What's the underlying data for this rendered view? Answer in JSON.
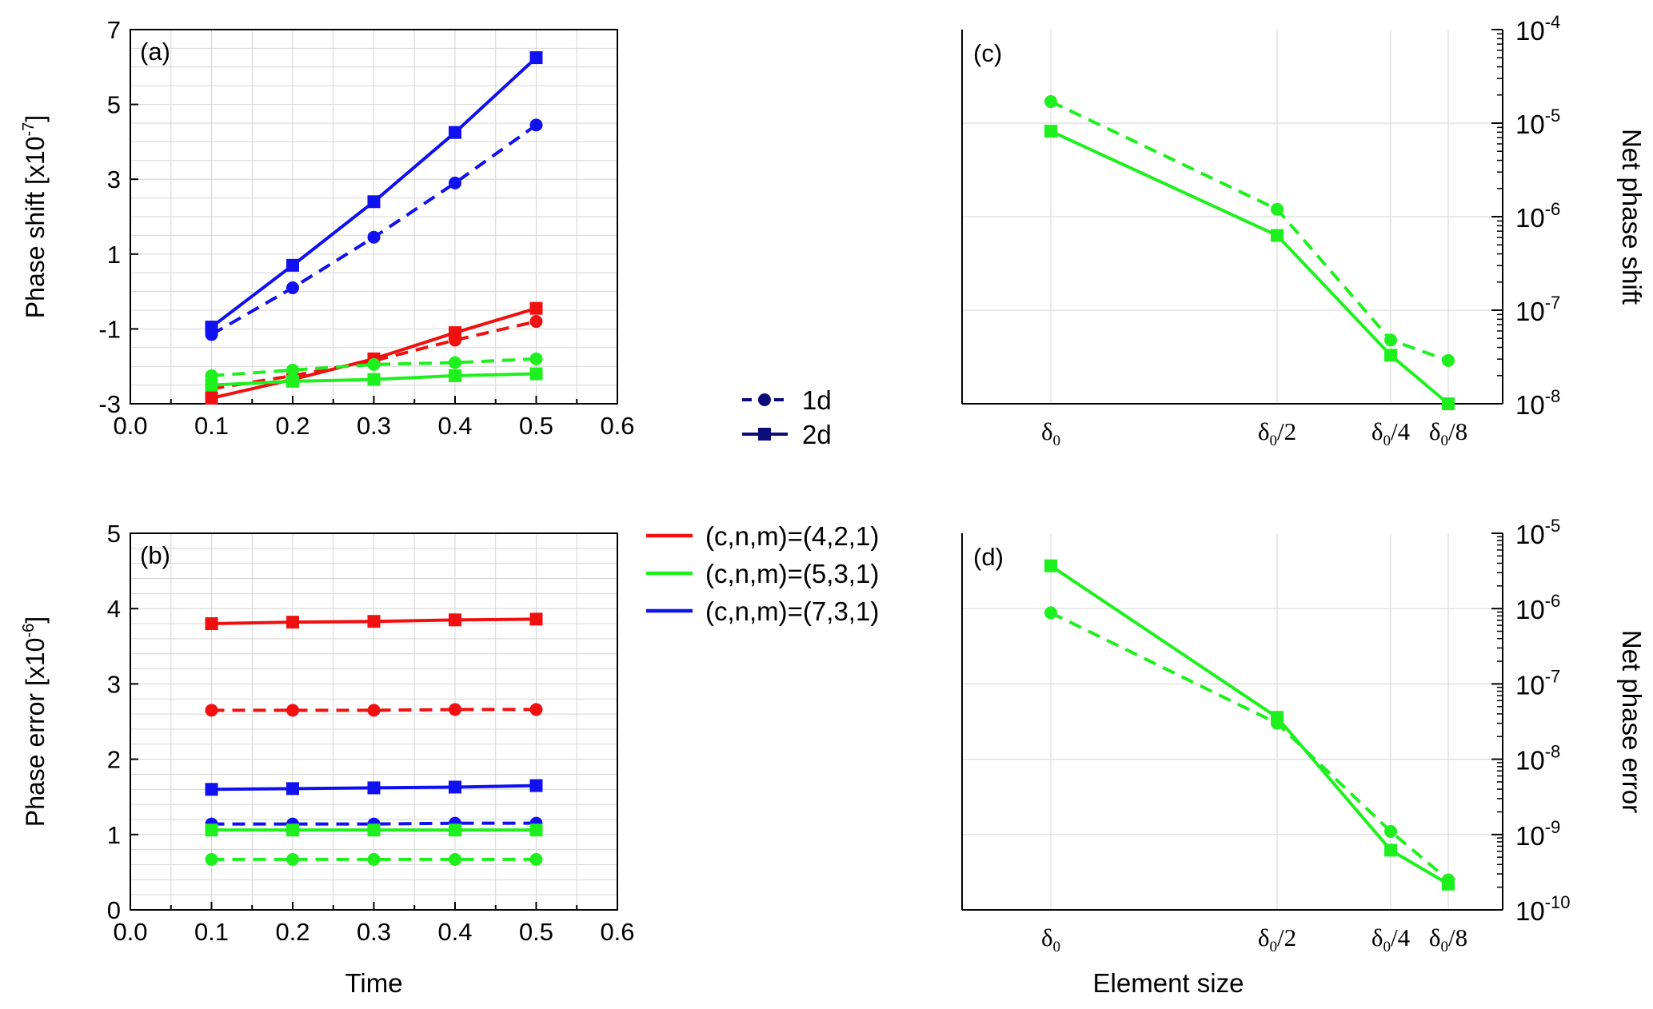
{
  "legend_style": {
    "entries": [
      {
        "label": "1d",
        "dash": true,
        "marker": "circle"
      },
      {
        "label": "2d",
        "dash": false,
        "marker": "square"
      }
    ],
    "color": "#0b0b7a"
  },
  "legend_series": {
    "entries": [
      {
        "label": "(c,n,m)=(4,2,1)",
        "color": "#f01010"
      },
      {
        "label": "(c,n,m)=(5,3,1)",
        "color": "#1ef01e"
      },
      {
        "label": "(c,n,m)=(7,3,1)",
        "color": "#1010f0"
      }
    ]
  },
  "chart_data": [
    {
      "panel": "(a)",
      "type": "line",
      "ylabel": "Phase shift [x10",
      "ylabel_exp": "-7",
      "ylabel_suffix": "]",
      "xlabel": "",
      "xlim": [
        0.0,
        0.6
      ],
      "ylim": [
        -3,
        7
      ],
      "xticks": [
        0.0,
        0.1,
        0.2,
        0.3,
        0.4,
        0.5,
        0.6
      ],
      "xtick_labels": [
        "0.0",
        "0.1",
        "0.2",
        "0.3",
        "0.4",
        "0.5",
        "0.6"
      ],
      "yticks": [
        -3,
        -1,
        1,
        3,
        5,
        7
      ],
      "ytick_labels": [
        "-3",
        "-1",
        "1",
        "3",
        "5",
        "7"
      ],
      "x": [
        0.1,
        0.2,
        0.3,
        0.4,
        0.5
      ],
      "series": [
        {
          "name": "(7,3,1) 2d",
          "color": "#1010f0",
          "dash": false,
          "marker": "square",
          "values": [
            -0.95,
            0.7,
            2.4,
            4.25,
            6.25
          ]
        },
        {
          "name": "(7,3,1) 1d",
          "color": "#1010f0",
          "dash": true,
          "marker": "circle",
          "values": [
            -1.15,
            0.1,
            1.45,
            2.9,
            4.45
          ]
        },
        {
          "name": "(4,2,1) 2d",
          "color": "#f01010",
          "dash": false,
          "marker": "square",
          "values": [
            -2.85,
            -2.35,
            -1.8,
            -1.1,
            -0.45
          ]
        },
        {
          "name": "(4,2,1) 1d",
          "color": "#f01010",
          "dash": true,
          "marker": "circle",
          "values": [
            -2.6,
            -2.25,
            -1.85,
            -1.3,
            -0.8
          ]
        },
        {
          "name": "(5,3,1) 2d",
          "color": "#1ef01e",
          "dash": false,
          "marker": "square",
          "values": [
            -2.5,
            -2.4,
            -2.35,
            -2.25,
            -2.2
          ]
        },
        {
          "name": "(5,3,1) 1d",
          "color": "#1ef01e",
          "dash": true,
          "marker": "circle",
          "values": [
            -2.25,
            -2.1,
            -1.95,
            -1.9,
            -1.8
          ]
        }
      ]
    },
    {
      "panel": "(b)",
      "type": "line",
      "ylabel": "Phase error [x10",
      "ylabel_exp": "-6",
      "ylabel_suffix": "]",
      "xlabel": "Time",
      "xlim": [
        0.0,
        0.6
      ],
      "ylim": [
        0,
        5
      ],
      "xticks": [
        0.0,
        0.1,
        0.2,
        0.3,
        0.4,
        0.5,
        0.6
      ],
      "xtick_labels": [
        "0.0",
        "0.1",
        "0.2",
        "0.3",
        "0.4",
        "0.5",
        "0.6"
      ],
      "yticks": [
        0,
        1,
        2,
        3,
        4,
        5
      ],
      "ytick_labels": [
        "0",
        "1",
        "2",
        "3",
        "4",
        "5"
      ],
      "x": [
        0.1,
        0.2,
        0.3,
        0.4,
        0.5
      ],
      "series": [
        {
          "name": "(4,2,1) 2d",
          "color": "#f01010",
          "dash": false,
          "marker": "square",
          "values": [
            3.8,
            3.82,
            3.83,
            3.85,
            3.86
          ]
        },
        {
          "name": "(4,2,1) 1d",
          "color": "#f01010",
          "dash": true,
          "marker": "circle",
          "values": [
            2.65,
            2.65,
            2.65,
            2.66,
            2.66
          ]
        },
        {
          "name": "(7,3,1) 2d",
          "color": "#1010f0",
          "dash": false,
          "marker": "square",
          "values": [
            1.6,
            1.61,
            1.62,
            1.63,
            1.65
          ]
        },
        {
          "name": "(7,3,1) 1d",
          "color": "#1010f0",
          "dash": true,
          "marker": "circle",
          "values": [
            1.14,
            1.14,
            1.14,
            1.15,
            1.15
          ]
        },
        {
          "name": "(5,3,1) 2d",
          "color": "#1ef01e",
          "dash": false,
          "marker": "square",
          "values": [
            1.06,
            1.06,
            1.06,
            1.06,
            1.06
          ]
        },
        {
          "name": "(5,3,1) 1d",
          "color": "#1ef01e",
          "dash": true,
          "marker": "circle",
          "values": [
            0.67,
            0.67,
            0.67,
            0.67,
            0.67
          ]
        }
      ]
    },
    {
      "panel": "(c)",
      "type": "line",
      "yscale": "log",
      "ylabel": "Net phase shift",
      "xlabel": "",
      "x": [
        1,
        0.5,
        0.25,
        0.125
      ],
      "xtick_labels": [
        {
          "base": "δ",
          "sub": "0",
          "tail": ""
        },
        {
          "base": "δ",
          "sub": "0",
          "tail": "/2"
        },
        {
          "base": "δ",
          "sub": "0",
          "tail": "/4"
        },
        {
          "base": "δ",
          "sub": "0",
          "tail": "/8"
        }
      ],
      "ylim_exp": [
        -8,
        -4
      ],
      "ytick_exps": [
        -8,
        -7,
        -6,
        -5,
        -4
      ],
      "ytick_base": "10",
      "series": [
        {
          "name": "2d",
          "color": "#1ef01e",
          "dash": false,
          "marker": "square",
          "values": [
            8.2e-06,
            6.3e-07,
            3.3e-08,
            1e-08
          ]
        },
        {
          "name": "1d",
          "color": "#1ef01e",
          "dash": true,
          "marker": "circle",
          "values": [
            1.7e-05,
            1.2e-06,
            4.8e-08,
            2.9e-08
          ]
        }
      ]
    },
    {
      "panel": "(d)",
      "type": "line",
      "yscale": "log",
      "ylabel": "Net phase error",
      "xlabel": "Element size",
      "x": [
        1,
        0.5,
        0.25,
        0.125
      ],
      "xtick_labels": [
        {
          "base": "δ",
          "sub": "0",
          "tail": ""
        },
        {
          "base": "δ",
          "sub": "0",
          "tail": "/2"
        },
        {
          "base": "δ",
          "sub": "0",
          "tail": "/4"
        },
        {
          "base": "δ",
          "sub": "0",
          "tail": "/8"
        }
      ],
      "ylim_exp": [
        -10,
        -5
      ],
      "ytick_exps": [
        -10,
        -9,
        -8,
        -7,
        -6,
        -5
      ],
      "ytick_base": "10",
      "series": [
        {
          "name": "2d",
          "color": "#1ef01e",
          "dash": false,
          "marker": "square",
          "values": [
            3.7e-06,
            3.6e-08,
            6.2e-10,
            2.2e-10
          ]
        },
        {
          "name": "1d",
          "color": "#1ef01e",
          "dash": true,
          "marker": "circle",
          "values": [
            8.8e-07,
            3e-08,
            1.1e-09,
            2.5e-10
          ]
        }
      ]
    }
  ]
}
